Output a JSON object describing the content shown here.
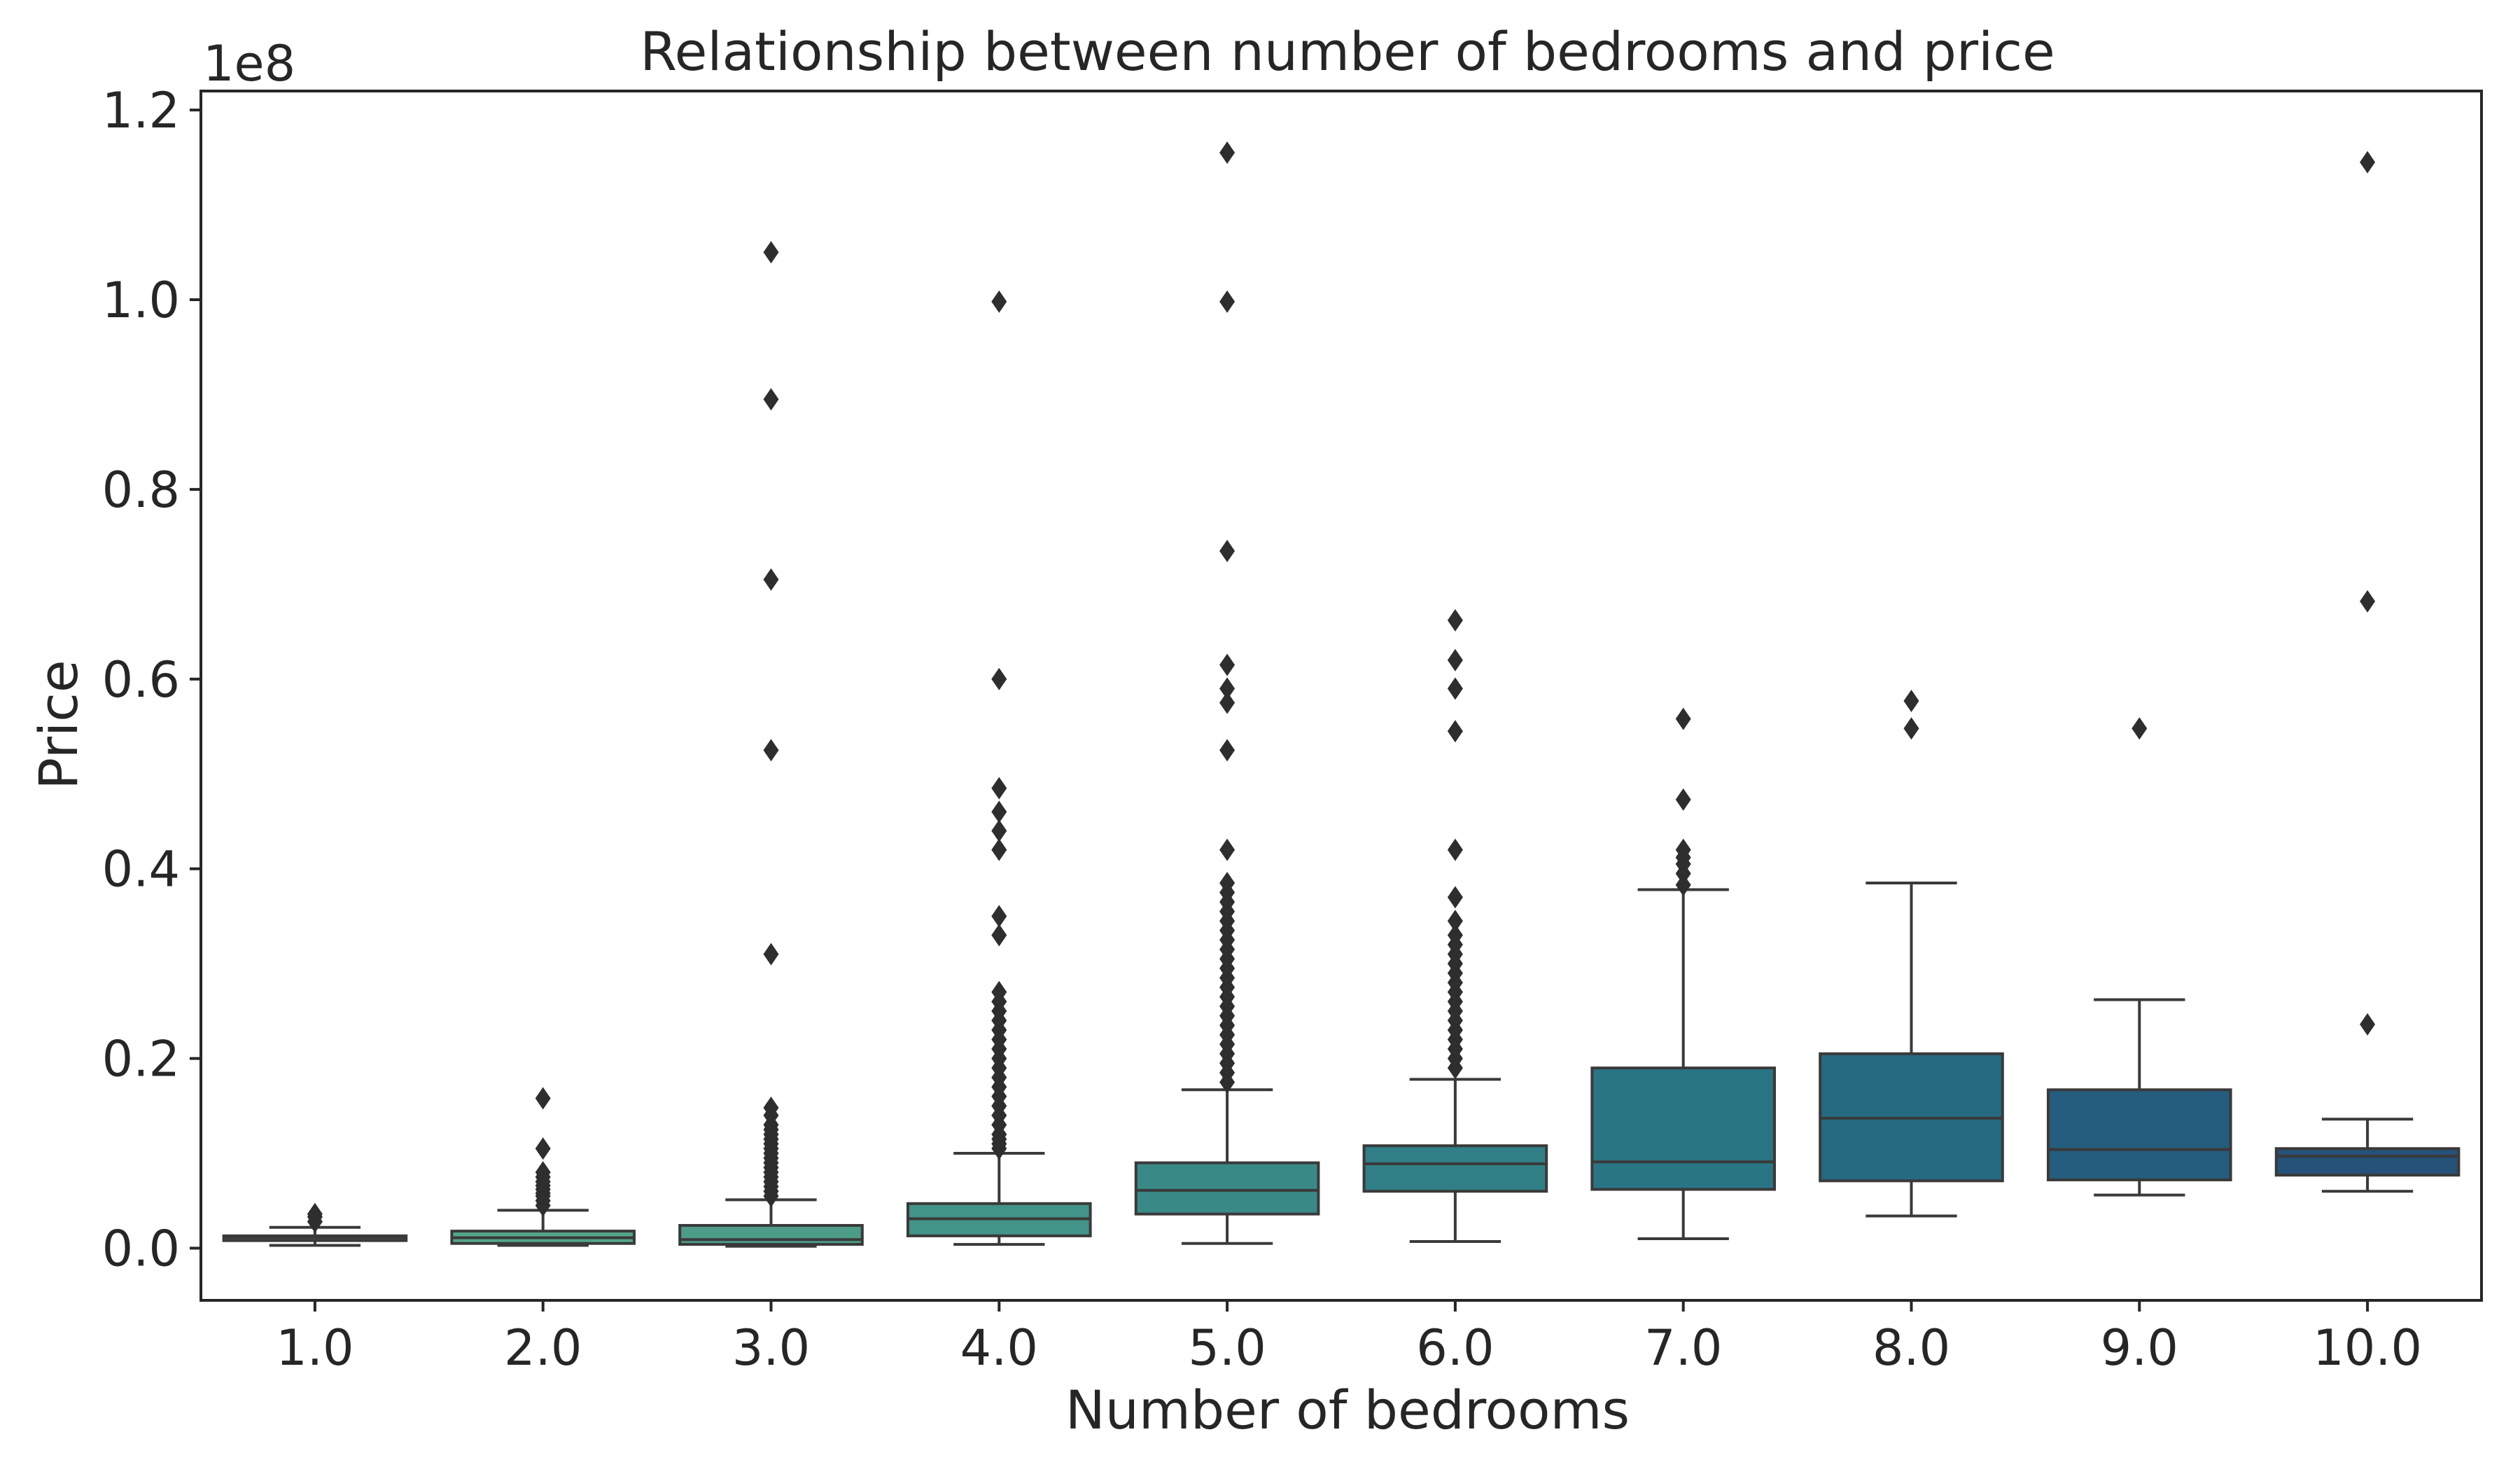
{
  "chart_data": {
    "type": "box",
    "title": "Relationship between number of bedrooms and price",
    "xlabel": "Number of bedrooms",
    "ylabel": "Price",
    "y_offset_label": "1e8",
    "ylim": [
      -0.055,
      1.22
    ],
    "y_ticks": [
      0.0,
      0.2,
      0.4,
      0.6,
      0.8,
      1.0,
      1.2
    ],
    "y_tick_labels": [
      "0.0",
      "0.2",
      "0.4",
      "0.6",
      "0.8",
      "1.0",
      "1.2"
    ],
    "grid": false,
    "legend": "none",
    "categories": [
      "1.0",
      "2.0",
      "3.0",
      "4.0",
      "5.0",
      "6.0",
      "7.0",
      "8.0",
      "9.0",
      "10.0"
    ],
    "boxes": [
      {
        "color": "#5eaf8b",
        "whislo": 0.003,
        "q1": 0.008,
        "med": 0.011,
        "q3": 0.013,
        "whishi": 0.022,
        "fliers": [
          0.028,
          0.033,
          0.036
        ]
      },
      {
        "color": "#54a58a",
        "whislo": 0.003,
        "q1": 0.005,
        "med": 0.011,
        "q3": 0.018,
        "whishi": 0.04,
        "fliers": [
          0.045,
          0.05,
          0.055,
          0.058,
          0.062,
          0.066,
          0.07,
          0.075,
          0.08,
          0.105,
          0.158
        ]
      },
      {
        "color": "#4c9c88",
        "whislo": 0.002,
        "q1": 0.004,
        "med": 0.009,
        "q3": 0.024,
        "whishi": 0.051,
        "fliers": [
          0.055,
          0.06,
          0.065,
          0.07,
          0.075,
          0.08,
          0.085,
          0.09,
          0.095,
          0.1,
          0.105,
          0.11,
          0.115,
          0.12,
          0.125,
          0.13,
          0.14,
          0.148,
          0.31,
          0.525,
          0.705,
          0.895,
          1.05
        ]
      },
      {
        "color": "#429388",
        "whislo": 0.004,
        "q1": 0.013,
        "med": 0.031,
        "q3": 0.047,
        "whishi": 0.1,
        "fliers": [
          0.105,
          0.11,
          0.115,
          0.12,
          0.13,
          0.14,
          0.15,
          0.16,
          0.17,
          0.18,
          0.19,
          0.2,
          0.21,
          0.22,
          0.23,
          0.24,
          0.25,
          0.26,
          0.27,
          0.33,
          0.35,
          0.42,
          0.44,
          0.46,
          0.485,
          0.6,
          0.998
        ]
      },
      {
        "color": "#398a87",
        "whislo": 0.005,
        "q1": 0.036,
        "med": 0.061,
        "q3": 0.09,
        "whishi": 0.167,
        "fliers": [
          0.175,
          0.185,
          0.195,
          0.205,
          0.215,
          0.225,
          0.235,
          0.245,
          0.255,
          0.265,
          0.275,
          0.285,
          0.295,
          0.305,
          0.315,
          0.325,
          0.335,
          0.345,
          0.355,
          0.365,
          0.375,
          0.385,
          0.42,
          0.525,
          0.575,
          0.59,
          0.615,
          0.735,
          0.998,
          1.155
        ]
      },
      {
        "color": "#307f86",
        "whislo": 0.007,
        "q1": 0.06,
        "med": 0.089,
        "q3": 0.108,
        "whishi": 0.178,
        "fliers": [
          0.19,
          0.2,
          0.21,
          0.22,
          0.23,
          0.24,
          0.25,
          0.26,
          0.27,
          0.28,
          0.29,
          0.3,
          0.31,
          0.32,
          0.33,
          0.345,
          0.37,
          0.42,
          0.545,
          0.59,
          0.62,
          0.662
        ]
      },
      {
        "color": "#297584",
        "whislo": 0.01,
        "q1": 0.062,
        "med": 0.091,
        "q3": 0.19,
        "whishi": 0.378,
        "fliers": [
          0.383,
          0.395,
          0.405,
          0.412,
          0.42,
          0.473,
          0.558
        ]
      },
      {
        "color": "#256a81",
        "whislo": 0.034,
        "q1": 0.071,
        "med": 0.137,
        "q3": 0.205,
        "whishi": 0.385,
        "fliers": [
          0.548,
          0.577
        ]
      },
      {
        "color": "#245d7d",
        "whislo": 0.056,
        "q1": 0.072,
        "med": 0.104,
        "q3": 0.167,
        "whishi": 0.262,
        "fliers": [
          0.548
        ]
      },
      {
        "color": "#265178",
        "whislo": 0.06,
        "q1": 0.077,
        "med": 0.097,
        "q3": 0.105,
        "whishi": 0.136,
        "fliers": [
          0.236,
          0.682,
          1.145
        ]
      }
    ]
  }
}
